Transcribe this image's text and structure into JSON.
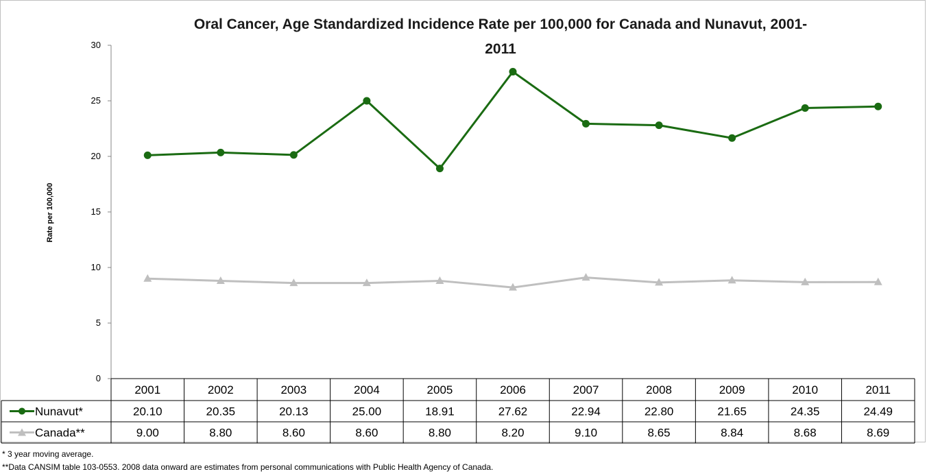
{
  "chart_data": {
    "type": "line",
    "title": "Oral Cancer, Age Standardized Incidence Rate per 100,000 for Canada and Nunavut, 2001-2011",
    "title_lines": [
      "Oral Cancer, Age Standardized Incidence Rate per 100,000 for Canada and Nunavut, 2001-",
      "2011"
    ],
    "ylabel": "Rate per 100,000",
    "xlabel": "",
    "ylim": [
      0,
      30
    ],
    "yticks": [
      0,
      5,
      10,
      15,
      20,
      25,
      30
    ],
    "ytick_labels": [
      "0",
      "5",
      "10",
      "15",
      "20",
      "25",
      "30"
    ],
    "grid": false,
    "legend": "data-table",
    "categories": [
      "2001",
      "2002",
      "2003",
      "2004",
      "2005",
      "2006",
      "2007",
      "2008",
      "2009",
      "2010",
      "2011"
    ],
    "series": [
      {
        "name": "Nunavut*",
        "color": "#1a6b12",
        "marker": "circle",
        "values": [
          20.1,
          20.35,
          20.13,
          25.0,
          18.91,
          27.62,
          22.94,
          22.8,
          21.65,
          24.35,
          24.49
        ],
        "labels": [
          "20.10",
          "20.35",
          "20.13",
          "25.00",
          "18.91",
          "27.62",
          "22.94",
          "22.80",
          "21.65",
          "24.35",
          "24.49"
        ]
      },
      {
        "name": "Canada**",
        "color": "#bfbfbf",
        "marker": "triangle",
        "values": [
          9.0,
          8.8,
          8.6,
          8.6,
          8.8,
          8.2,
          9.1,
          8.65,
          8.84,
          8.68,
          8.69
        ],
        "labels": [
          "9.00",
          "8.80",
          "8.60",
          "8.60",
          "8.80",
          "8.20",
          "9.10",
          "8.65",
          "8.84",
          "8.68",
          "8.69"
        ]
      }
    ]
  },
  "footnotes": [
    "* 3 year moving average.",
    "**Data CANSIM table 103-0553. 2008 data onward are estimates from  personal communications with Public Health Agency of Canada."
  ]
}
